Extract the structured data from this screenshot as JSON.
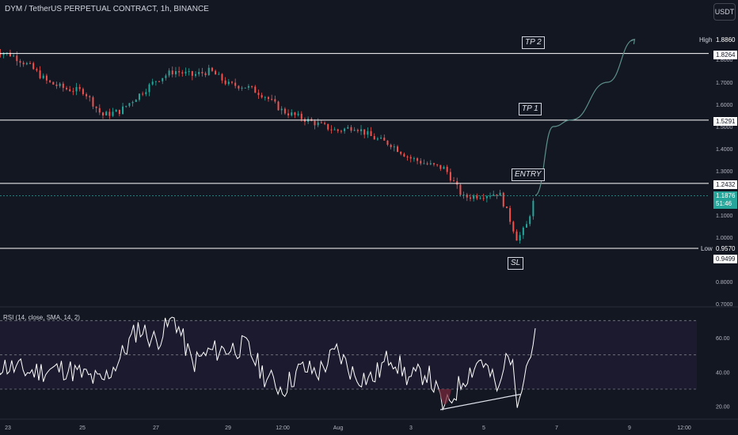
{
  "header": {
    "symbol_title": "DYM / TetherUS PERPETUAL CONTRACT, 1h, BINANCE",
    "currency_button": "USDT"
  },
  "annotations": {
    "tp2": "TP 2",
    "tp1": "TP 1",
    "entry": "ENTRY",
    "sl": "SL"
  },
  "price_scale": {
    "high_label": "High",
    "high_value": "1.8860",
    "low_label": "Low",
    "low_value": "0.9570",
    "tp2_level": "1.8264",
    "tp1_level": "1.5291",
    "entry_level": "1.2432",
    "sl_level": "0.9499",
    "last_price": "1.1876",
    "countdown": "51:46",
    "ticks": [
      "1.8000",
      "1.7000",
      "1.6000",
      "1.5000",
      "1.4000",
      "1.3000",
      "1.2000",
      "1.1000",
      "1.0000",
      "0.9000",
      "0.8000",
      "0.7000"
    ]
  },
  "rsi": {
    "label": "RSI (14, close, SMA, 14, 2)",
    "ticks": [
      "60.00",
      "40.00",
      "20.00"
    ],
    "levels": [
      70,
      50,
      30
    ]
  },
  "time_axis": {
    "ticks": [
      "23",
      "25",
      "27",
      "29",
      "12:00",
      "Aug",
      "3",
      "5",
      "7",
      "9",
      "12:00"
    ]
  },
  "colors": {
    "background": "#131722",
    "bull": "#26a69a",
    "bear": "#ef5350",
    "level_line": "#ffffff",
    "projection": "#5d8f8a",
    "rsi_line": "#ffffff",
    "rsi_band": "#1f1a2e"
  },
  "chart_data": {
    "type": "candlestick",
    "title": "DYM / TetherUS PERPETUAL CONTRACT, 1h, BINANCE",
    "x_start": "Jul 22",
    "x_end": "Aug 12",
    "ylim": [
      0.7,
      1.9
    ],
    "horizontal_levels": [
      {
        "name": "TP 2",
        "value": 1.8264
      },
      {
        "name": "TP 1",
        "value": 1.5291
      },
      {
        "name": "ENTRY",
        "value": 1.2432
      },
      {
        "name": "SL",
        "value": 0.9499
      }
    ],
    "period_high": 1.886,
    "period_low": 0.957,
    "last_price": 1.1876,
    "price_path": [
      [
        "Jul 22",
        1.84
      ],
      [
        "Jul 22 12:00",
        1.82
      ],
      [
        "Jul 23",
        1.77
      ],
      [
        "Jul 23 12:00",
        1.7
      ],
      [
        "Jul 24",
        1.67
      ],
      [
        "Jul 24 12:00",
        1.66
      ],
      [
        "Jul 25",
        1.55
      ],
      [
        "Jul 25 12:00",
        1.57
      ],
      [
        "Jul 26",
        1.64
      ],
      [
        "Jul 26 12:00",
        1.71
      ],
      [
        "Jul 27",
        1.75
      ],
      [
        "Jul 27 12:00",
        1.73
      ],
      [
        "Jul 28",
        1.75
      ],
      [
        "Jul 28 12:00",
        1.69
      ],
      [
        "Jul 29",
        1.68
      ],
      [
        "Jul 29 12:00",
        1.64
      ],
      [
        "Jul 30",
        1.57
      ],
      [
        "Jul 30 12:00",
        1.54
      ],
      [
        "Jul 31",
        1.51
      ],
      [
        "Jul 31 12:00",
        1.48
      ],
      [
        "Aug 1",
        1.5
      ],
      [
        "Aug 1 12:00",
        1.45
      ],
      [
        "Aug 2",
        1.42
      ],
      [
        "Aug 2 12:00",
        1.36
      ],
      [
        "Aug 3",
        1.33
      ],
      [
        "Aug 3 12:00",
        1.31
      ],
      [
        "Aug 4",
        1.18
      ],
      [
        "Aug 4 12:00",
        1.19
      ],
      [
        "Aug 5",
        1.2
      ],
      [
        "Aug 5 06:00",
        1.1
      ],
      [
        "Aug 5 12:00",
        0.99
      ],
      [
        "Aug 5 18:00",
        1.05
      ],
      [
        "Aug 6",
        1.19
      ]
    ],
    "projection_path": [
      [
        "Aug 6",
        1.19
      ],
      [
        "Aug 6 12:00",
        1.5
      ],
      [
        "Aug 7",
        1.53
      ],
      [
        "Aug 8",
        1.7
      ],
      [
        "Aug 8 18:00",
        1.89
      ]
    ],
    "rsi_path": [
      [
        "Jul 22",
        45
      ],
      [
        "Jul 23",
        40
      ],
      [
        "Jul 24",
        42
      ],
      [
        "Jul 25",
        34
      ],
      [
        "Jul 25 12:00",
        48
      ],
      [
        "Jul 26",
        66
      ],
      [
        "Jul 26 12:00",
        58
      ],
      [
        "Jul 27",
        72
      ],
      [
        "Jul 27 12:00",
        45
      ],
      [
        "Jul 28",
        52
      ],
      [
        "Jul 29",
        55
      ],
      [
        "Jul 29 12:00",
        38
      ],
      [
        "Jul 30",
        30
      ],
      [
        "Jul 30 12:00",
        42
      ],
      [
        "Jul 31",
        40
      ],
      [
        "Jul 31 12:00",
        52
      ],
      [
        "Aug 1",
        38
      ],
      [
        "Aug 1 12:00",
        36
      ],
      [
        "Aug 2",
        50
      ],
      [
        "Aug 2 12:00",
        36
      ],
      [
        "Aug 3",
        40
      ],
      [
        "Aug 3 12:00",
        18
      ],
      [
        "Aug 4",
        36
      ],
      [
        "Aug 4 12:00",
        48
      ],
      [
        "Aug 5",
        28
      ],
      [
        "Aug 5 06:00",
        55
      ],
      [
        "Aug 5 12:00",
        26
      ],
      [
        "Aug 5 18:00",
        44
      ],
      [
        "Aug 6",
        60
      ]
    ]
  }
}
